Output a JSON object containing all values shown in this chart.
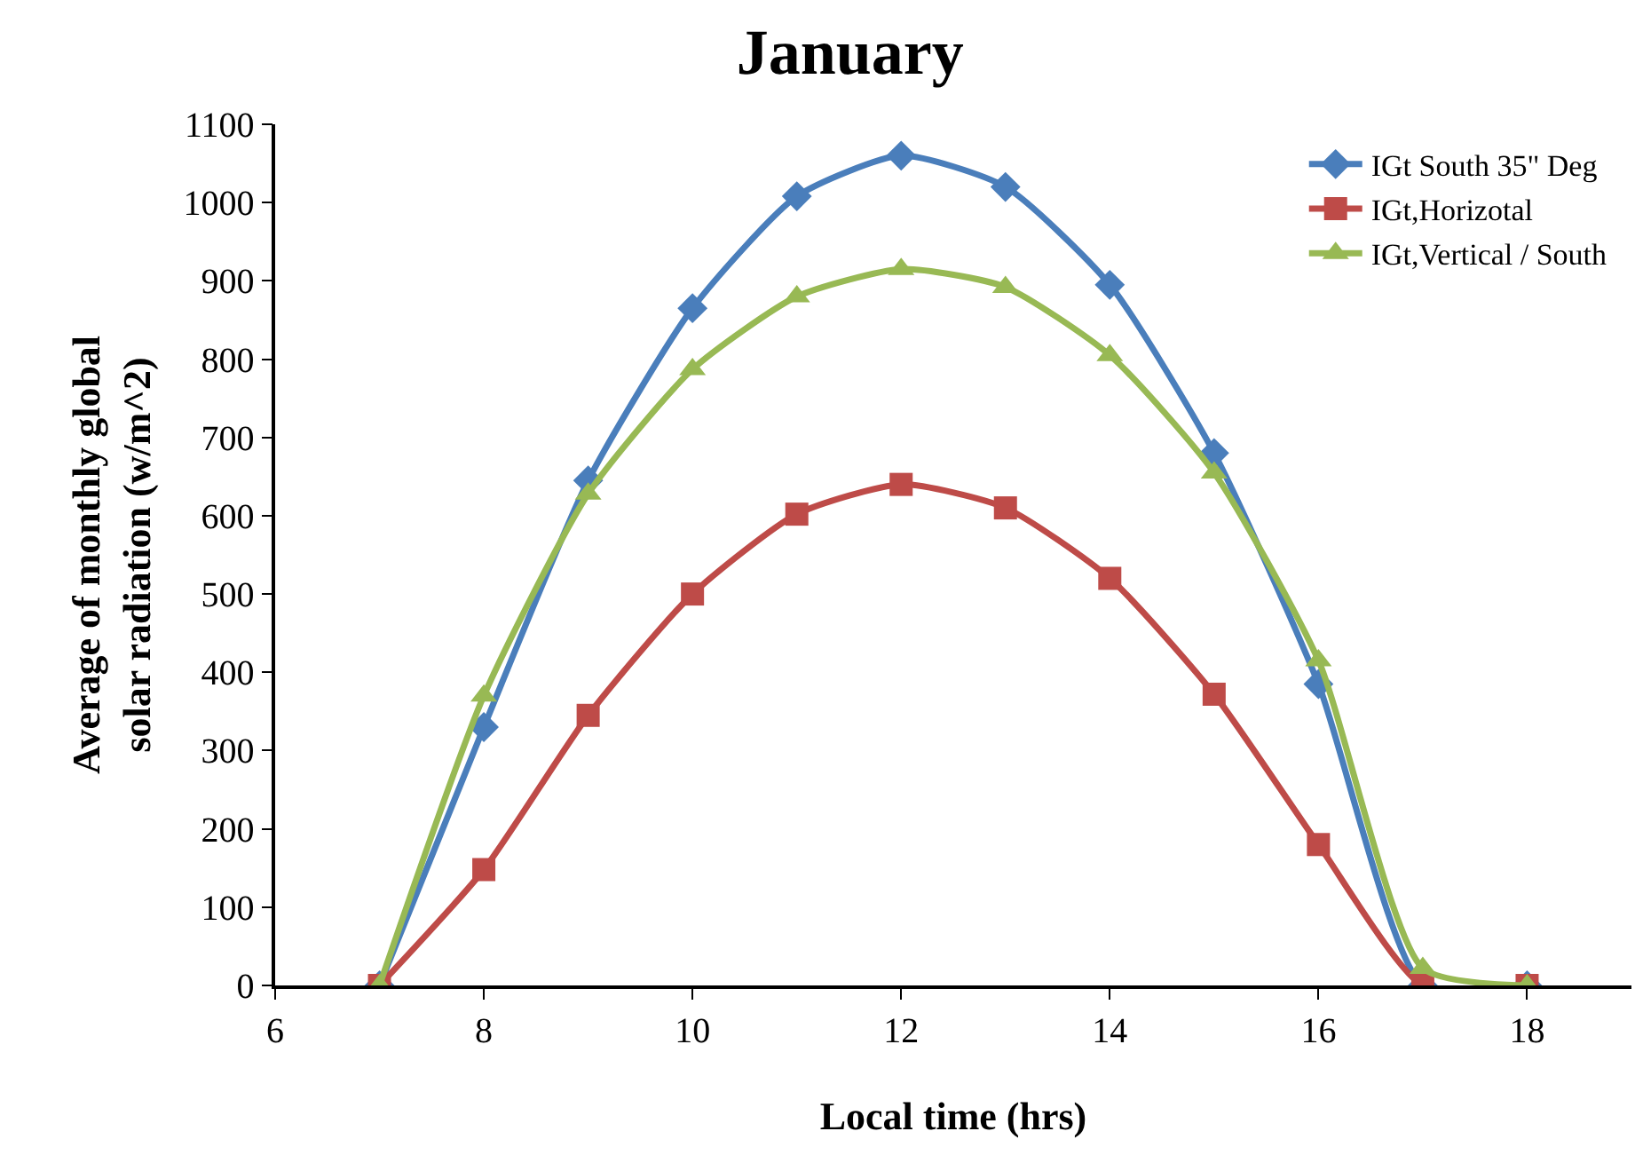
{
  "chart_data": {
    "type": "line",
    "title": "January",
    "xlabel": "Local time (hrs)",
    "ylabel": "Average of monthly global solar radiation (w/m^2)",
    "x": [
      7,
      8,
      9,
      10,
      11,
      12,
      13,
      14,
      15,
      16,
      17,
      18
    ],
    "series": [
      {
        "name": "IGt South 35\" Deg",
        "color": "#4a7ebb",
        "marker": "diamond",
        "values": [
          0,
          330,
          645,
          865,
          1008,
          1060,
          1020,
          895,
          680,
          385,
          0,
          0
        ]
      },
      {
        "name": "IGt,Horizotal",
        "color": "#be4b48",
        "marker": "square",
        "values": [
          0,
          148,
          345,
          500,
          602,
          640,
          610,
          520,
          372,
          180,
          0,
          0
        ]
      },
      {
        "name": "IGt,Vertical / South",
        "color": "#98b954",
        "marker": "triangle",
        "values": [
          0,
          370,
          628,
          787,
          880,
          915,
          892,
          805,
          655,
          415,
          22,
          0
        ]
      }
    ],
    "xlim": [
      6,
      19
    ],
    "xticks": [
      6,
      8,
      10,
      12,
      14,
      16,
      18
    ],
    "ylim": [
      0,
      1100
    ],
    "yticks": [
      0,
      100,
      200,
      300,
      400,
      500,
      600,
      700,
      800,
      900,
      1000,
      1100
    ],
    "grid": false,
    "legend": "top right",
    "line_style": "solid"
  }
}
